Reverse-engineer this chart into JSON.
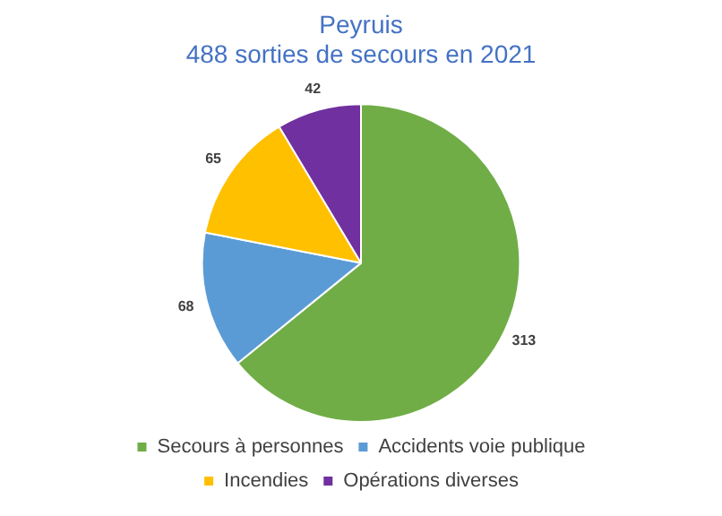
{
  "chart_data": {
    "type": "pie",
    "title": "Peyruis",
    "subtitle": "488 sorties de secours en 2021",
    "categories": [
      "Secours à personnes",
      "Accidents voie publique",
      "Incendies",
      "Opérations diverses"
    ],
    "values": [
      313,
      68,
      65,
      42
    ],
    "colors": [
      "#70ad47",
      "#5b9bd5",
      "#ffc000",
      "#7030a0"
    ],
    "data_labels": true,
    "legend": "bottom"
  }
}
